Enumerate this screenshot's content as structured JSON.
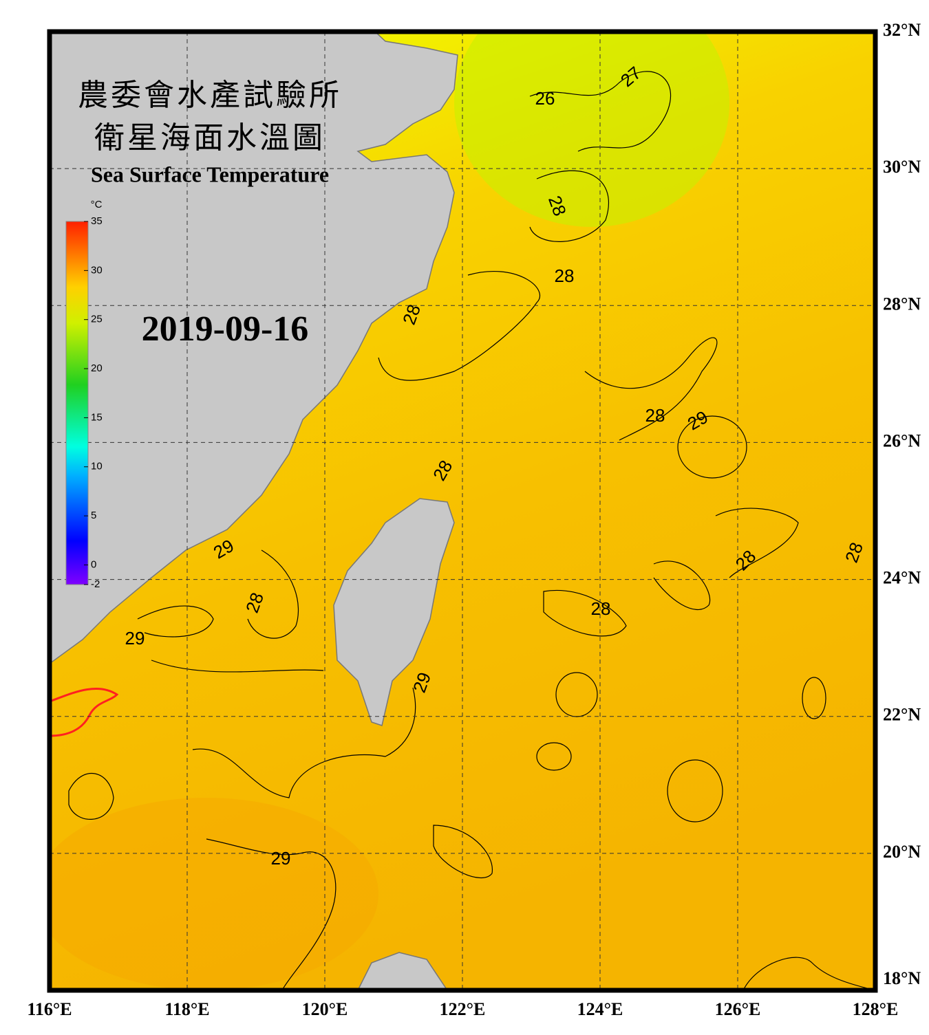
{
  "title": {
    "line1": "農委會水產試驗所",
    "line2": "衛星海面水溫圖",
    "english": "Sea Surface Temperature"
  },
  "date": "2019-09-16",
  "colorbar": {
    "unit": "°C",
    "range": [
      -2,
      35
    ],
    "ticks": [
      35,
      30,
      25,
      20,
      15,
      10,
      5,
      0,
      -2
    ]
  },
  "lon_range": [
    116,
    128
  ],
  "lat_range": [
    18,
    32
  ],
  "lon_ticks": [
    {
      "value": 116,
      "label": "116°E"
    },
    {
      "value": 118,
      "label": "118°E"
    },
    {
      "value": 120,
      "label": "120°E"
    },
    {
      "value": 122,
      "label": "122°E"
    },
    {
      "value": 124,
      "label": "124°E"
    },
    {
      "value": 126,
      "label": "126°E"
    },
    {
      "value": 128,
      "label": "128°E"
    }
  ],
  "lat_ticks": [
    {
      "value": 32,
      "label": "32°N"
    },
    {
      "value": 30,
      "label": "30°N"
    },
    {
      "value": 28,
      "label": "28°N"
    },
    {
      "value": 26,
      "label": "26°N"
    },
    {
      "value": 24,
      "label": "24°N"
    },
    {
      "value": 22,
      "label": "22°N"
    },
    {
      "value": 20,
      "label": "20°N"
    },
    {
      "value": 18,
      "label": "18°N"
    }
  ],
  "contour_labels": [
    26,
    27,
    28,
    28,
    28,
    28,
    29,
    28,
    29,
    28,
    29,
    28,
    28,
    28,
    29,
    29
  ]
}
